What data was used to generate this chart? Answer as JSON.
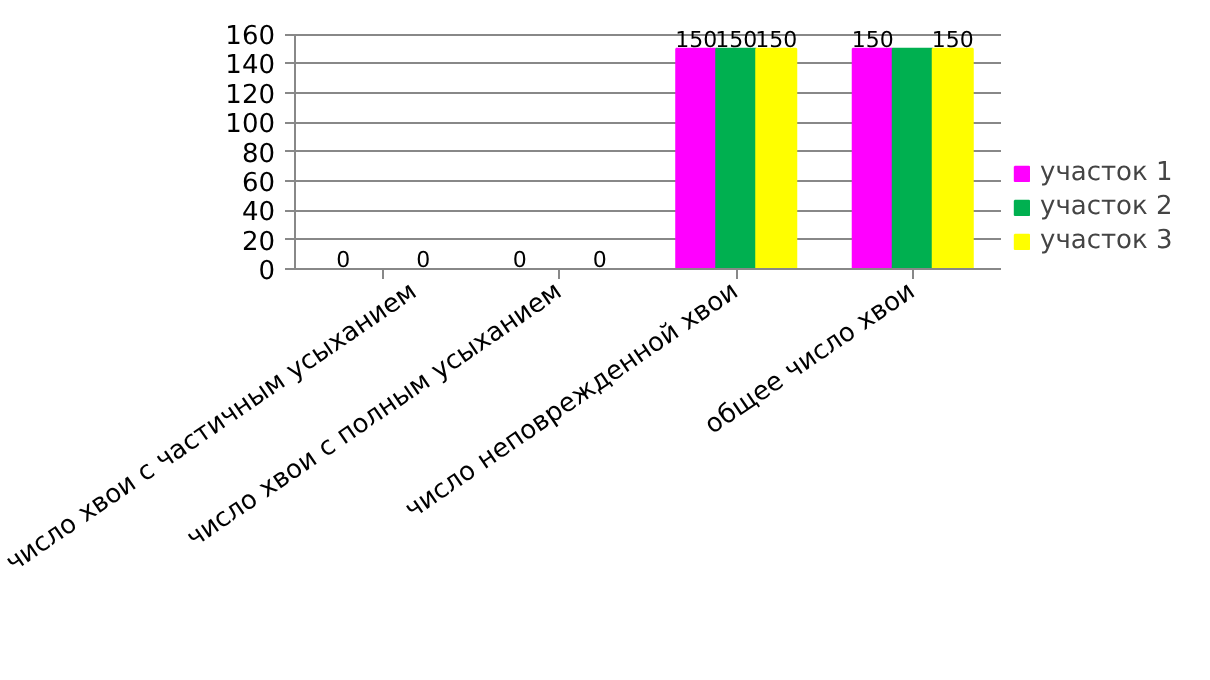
{
  "chart_data": {
    "type": "bar",
    "categories": [
      "число хвои с частичным усыханием",
      "число хвои с полным усыханием",
      "число неповрежденной хвои",
      "общее число хвои"
    ],
    "series": [
      {
        "name": "участок 1",
        "color": "#ff00ff",
        "values": [
          0,
          0,
          150,
          150
        ],
        "value_labels": [
          "0",
          "0",
          "150",
          "150"
        ]
      },
      {
        "name": "участок 2",
        "color": "#00b050",
        "values": [
          0,
          0,
          150,
          150
        ],
        "value_labels": [
          null,
          null,
          "150",
          null
        ]
      },
      {
        "name": "участок 3",
        "color": "#ffff00",
        "values": [
          0,
          0,
          150,
          150
        ],
        "value_labels": [
          "0",
          "0",
          "150",
          "150"
        ]
      }
    ],
    "ylim": [
      0,
      160
    ],
    "yticks": [
      0,
      20,
      40,
      60,
      80,
      100,
      120,
      140,
      160
    ],
    "grid": "y",
    "legend": "right"
  }
}
